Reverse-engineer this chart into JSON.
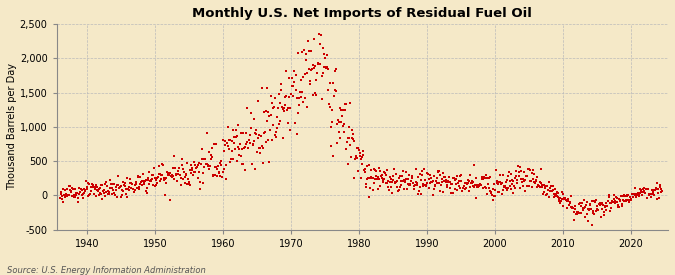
{
  "title": "Monthly U.S. Net Imports of Residual Fuel Oil",
  "ylabel": "Thousand Barrels per Day",
  "source": "Source: U.S. Energy Information Administration",
  "background_color": "#f5e9c8",
  "dot_color": "#cc0000",
  "dot_size": 3.5,
  "dot_marker": "s",
  "ylim": [
    -500,
    2500
  ],
  "yticks": [
    -500,
    0,
    500,
    1000,
    1500,
    2000,
    2500
  ],
  "xlim_start": 1935.5,
  "xlim_end": 2025.5,
  "xticks": [
    1940,
    1950,
    1960,
    1970,
    1980,
    1990,
    2000,
    2010,
    2020
  ],
  "title_fontsize": 9.5,
  "ylabel_fontsize": 7,
  "tick_fontsize": 7,
  "source_fontsize": 6
}
